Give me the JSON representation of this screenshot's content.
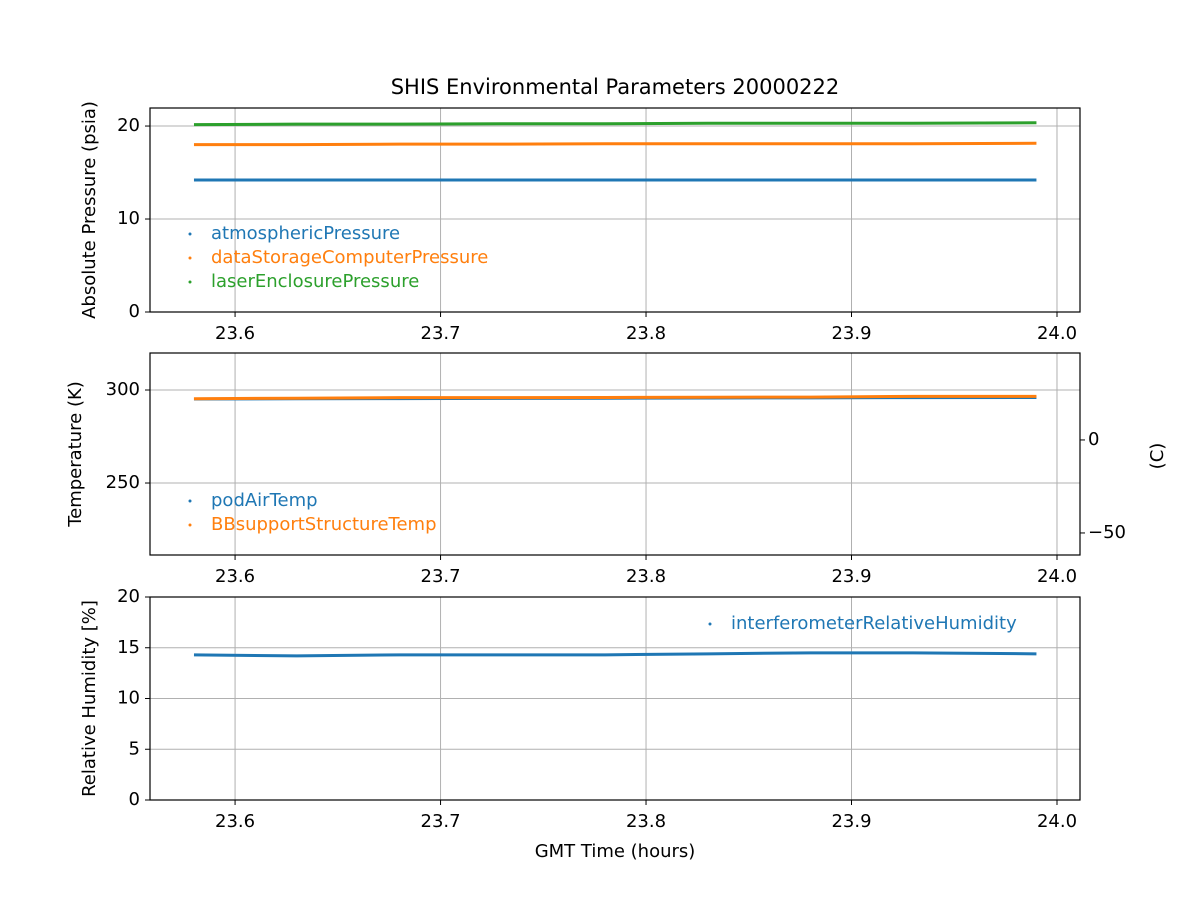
{
  "chart_data": [
    {
      "type": "line",
      "title": "SHIS Environmental Parameters 20000222",
      "ylabel": "Absolute Pressure (psia)",
      "x": [
        23.58,
        23.63,
        23.68,
        23.73,
        23.78,
        23.83,
        23.88,
        23.93,
        23.99
      ],
      "series": [
        {
          "name": "atmosphericPressure",
          "color": "#1f77b4",
          "values": [
            14.2,
            14.2,
            14.2,
            14.2,
            14.2,
            14.2,
            14.2,
            14.2,
            14.2
          ]
        },
        {
          "name": "dataStorageComputerPressure",
          "color": "#ff7f0e",
          "values": [
            18.0,
            18.0,
            18.05,
            18.05,
            18.1,
            18.1,
            18.1,
            18.1,
            18.15
          ]
        },
        {
          "name": "laserEnclosurePressure",
          "color": "#2ca02c",
          "values": [
            20.15,
            20.2,
            20.2,
            20.25,
            20.25,
            20.3,
            20.3,
            20.3,
            20.35
          ]
        }
      ],
      "xlim": [
        23.5586,
        24.0112
      ],
      "xticks": [
        23.6,
        23.7,
        23.8,
        23.9,
        {
          "value": 24,
          "label": "24.0"
        }
      ],
      "ylim": [
        0,
        21.94
      ],
      "yticks": [
        0,
        10,
        20
      ],
      "grid": true,
      "legend": "lower left"
    },
    {
      "type": "line",
      "ylabel": "Temperature (K)",
      "y2label": "(C)",
      "x": [
        23.58,
        23.63,
        23.68,
        23.73,
        23.78,
        23.83,
        23.88,
        23.93,
        23.99
      ],
      "series": [
        {
          "name": "podAirTemp",
          "color": "#1f77b4",
          "values": [
            295.2,
            295.3,
            295.4,
            295.5,
            295.6,
            295.7,
            295.8,
            295.9,
            296.0
          ]
        },
        {
          "name": "BBsupportStructureTemp",
          "color": "#ff7f0e",
          "values": [
            295.3,
            295.6,
            295.9,
            295.9,
            296.0,
            296.1,
            296.2,
            296.6,
            296.6
          ]
        }
      ],
      "xlim": [
        23.5586,
        24.0112
      ],
      "xticks": [
        23.6,
        23.7,
        23.8,
        23.9,
        {
          "value": 24,
          "label": "24.0"
        }
      ],
      "ylim": [
        211.3,
        319.9
      ],
      "yticks": [
        250,
        300
      ],
      "y2lim": [
        -61.85,
        46.75
      ],
      "y2ticks": [
        {
          "value": -50,
          "label": "−50"
        },
        0
      ],
      "grid": true,
      "legend": "lower left"
    },
    {
      "type": "line",
      "ylabel": "Relative Humidity [%]",
      "xlabel": "GMT Time (hours)",
      "x": [
        23.58,
        23.63,
        23.68,
        23.73,
        23.78,
        23.83,
        23.88,
        23.93,
        23.99
      ],
      "series": [
        {
          "name": "interferometerRelativeHumidity",
          "color": "#1f77b4",
          "values": [
            14.3,
            14.2,
            14.3,
            14.3,
            14.3,
            14.4,
            14.5,
            14.5,
            14.4
          ]
        }
      ],
      "xlim": [
        23.5586,
        24.0112
      ],
      "xticks": [
        23.6,
        23.7,
        23.8,
        23.9,
        {
          "value": 24,
          "label": "24.0"
        }
      ],
      "ylim": [
        0,
        20
      ],
      "yticks": [
        0,
        5,
        10,
        15,
        20
      ],
      "grid": true,
      "legend": "upper right"
    }
  ]
}
